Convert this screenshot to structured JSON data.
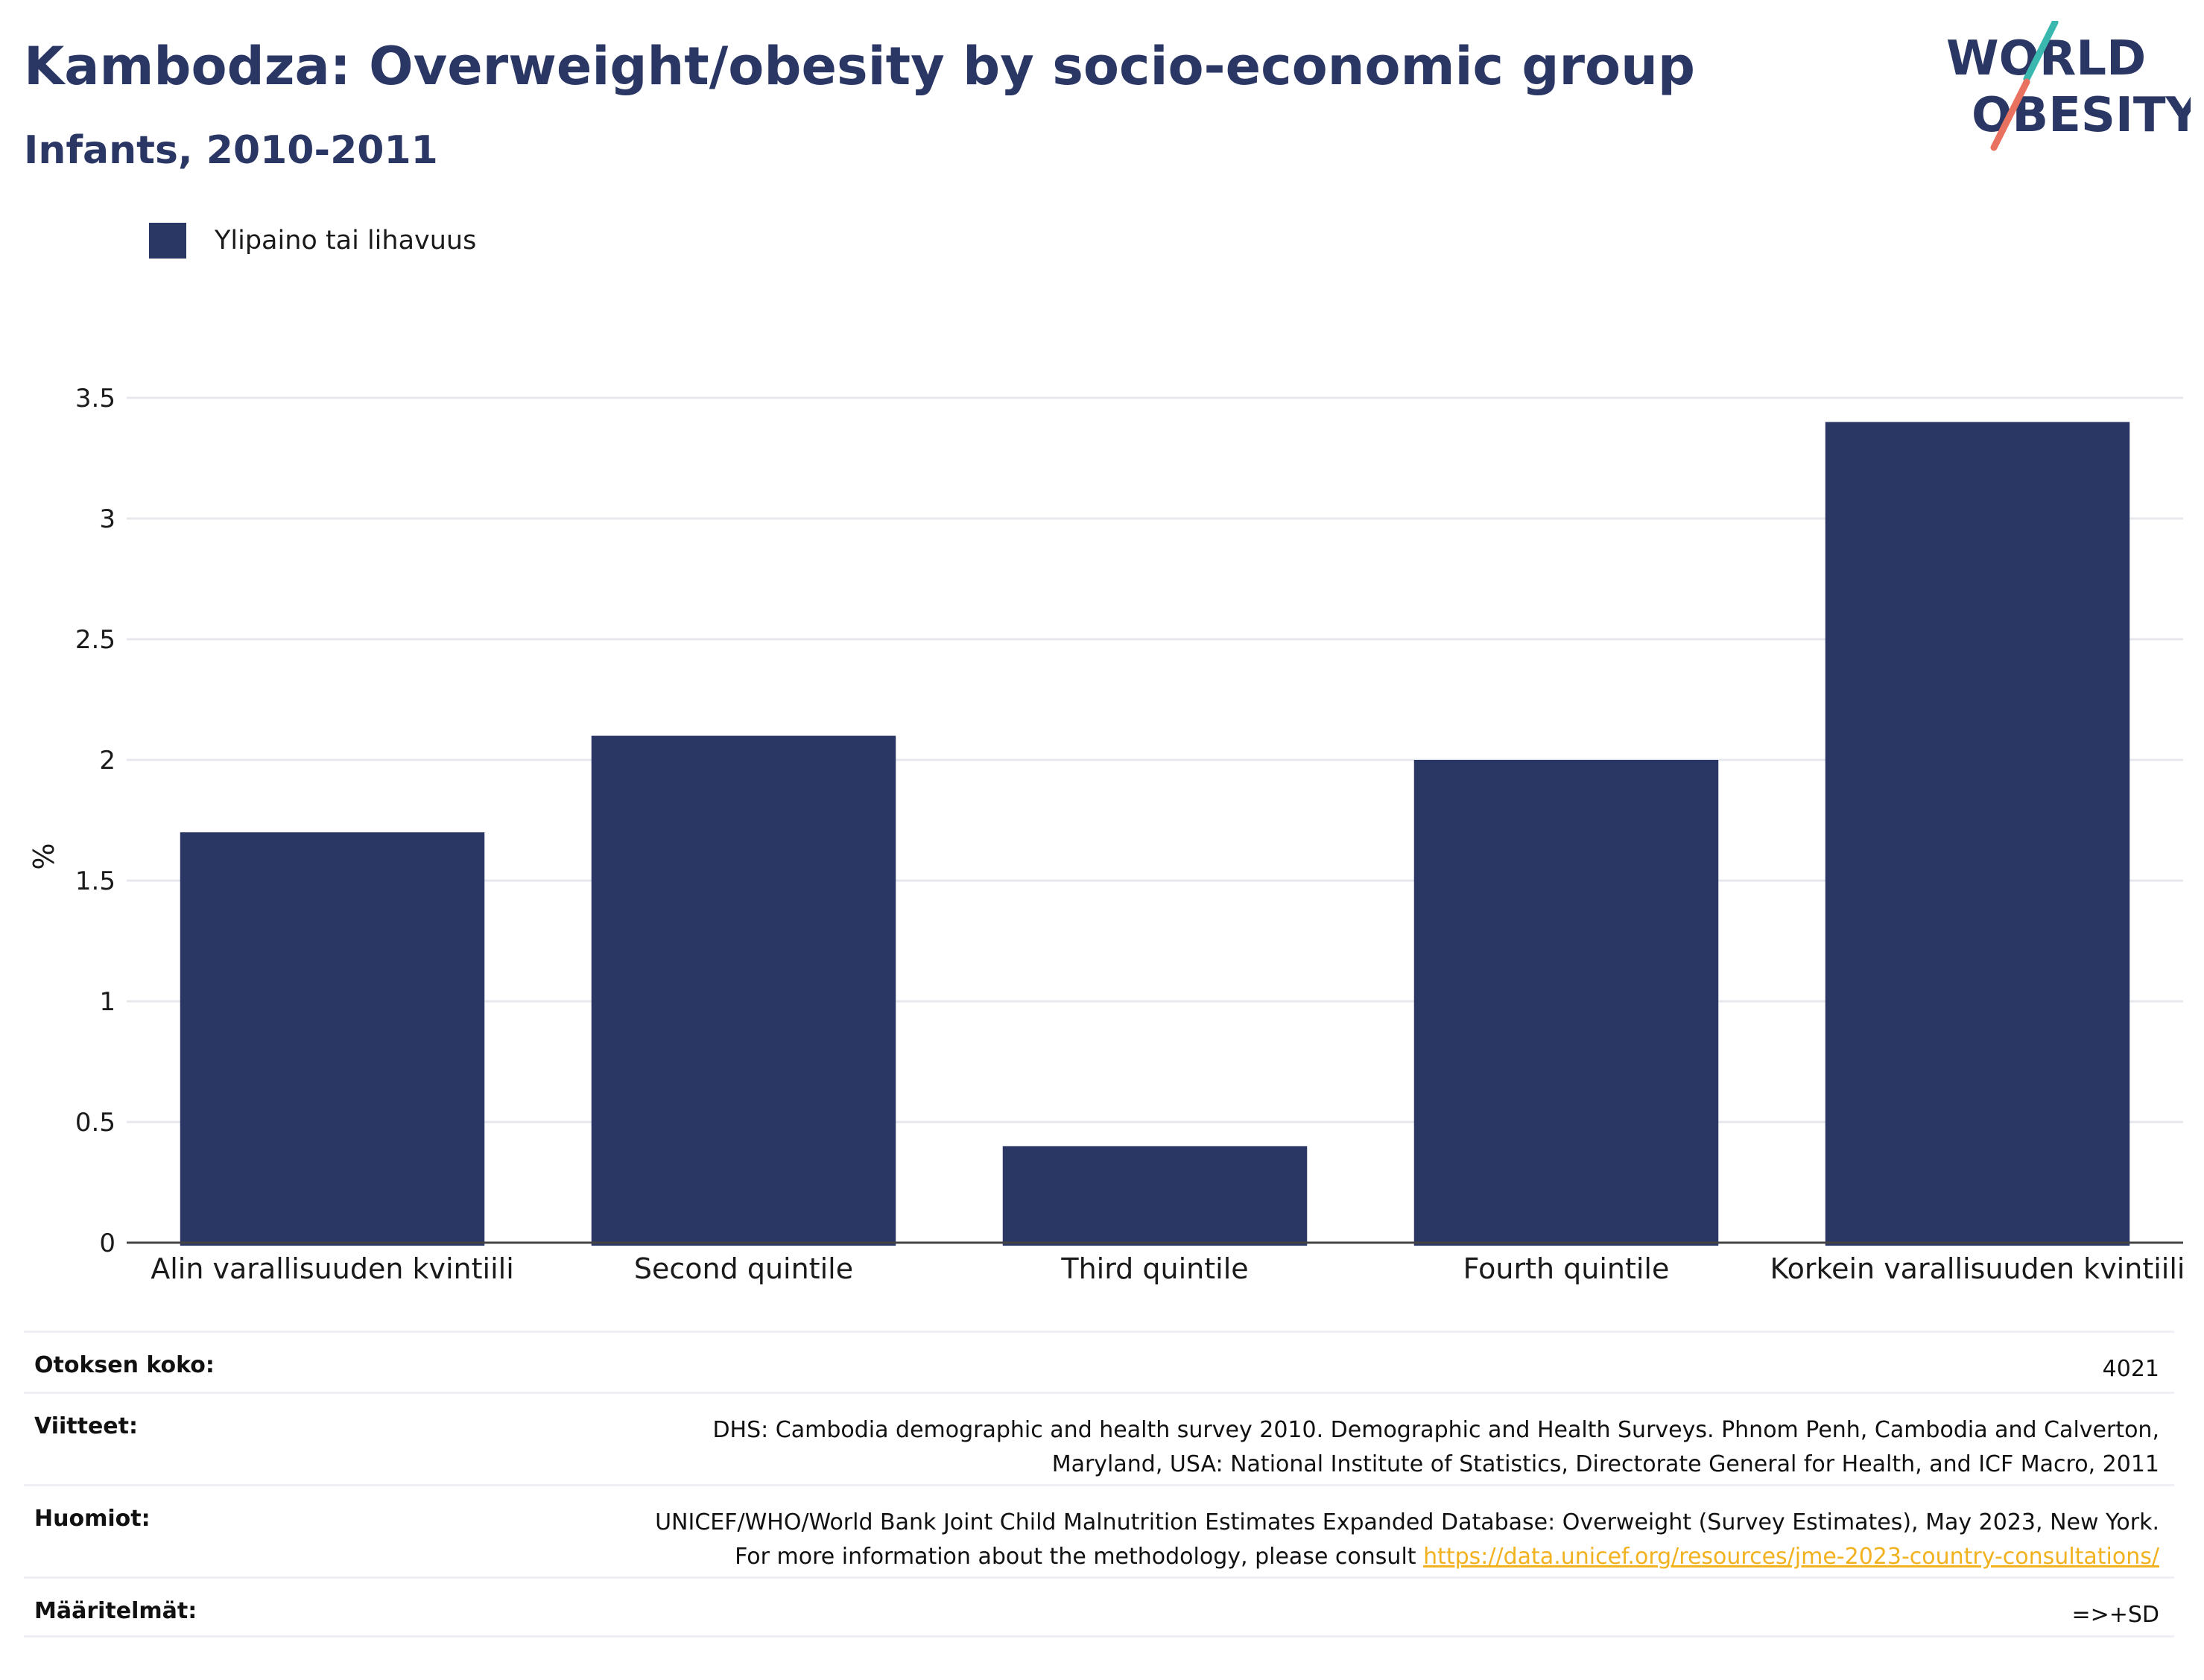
{
  "header": {
    "title": "Kambodza: Overweight/obesity by socio-economic group",
    "subtitle": "Infants, 2010-2011"
  },
  "logo": {
    "line1": "WORLD",
    "line2": "OBESITY"
  },
  "colors": {
    "bar": "#2a3663",
    "title": "#2a3663",
    "grid": "#e6e8ee",
    "link": "#f2b21f",
    "logo_slash_top": "#3ab8b0",
    "logo_slash_bottom": "#e8715f"
  },
  "legend": {
    "label": "Ylipaino tai lihavuus"
  },
  "chart_data": {
    "type": "bar",
    "categories": [
      "Alin varallisuuden kvintiili",
      "Second quintile",
      "Third quintile",
      "Fourth quintile",
      "Korkein varallisuuden kvintiili"
    ],
    "series": [
      {
        "name": "Ylipaino tai lihavuus",
        "values": [
          1.7,
          2.1,
          0.4,
          2.0,
          3.4
        ]
      }
    ],
    "ylabel": "%",
    "ylim": [
      0,
      3.5
    ],
    "yticks": [
      0,
      0.5,
      1,
      1.5,
      2,
      2.5,
      3,
      3.5
    ],
    "ytick_labels": [
      "0",
      "0.5",
      "1",
      "1.5",
      "2",
      "2.5",
      "3",
      "3.5"
    ],
    "grid": true,
    "legend_position": "top-left"
  },
  "meta": {
    "sample_label": "Otoksen koko:",
    "sample_value": "4021",
    "references_label": "Viitteet:",
    "references_value": "DHS: Cambodia demographic and health survey 2010. Demographic and Health Surveys. Phnom Penh, Cambodia and Calverton, Maryland, USA: National Institute of Statistics, Directorate General for Health, and ICF Macro, 2011",
    "notes_label": "Huomiot:",
    "notes_value": "UNICEF/WHO/World Bank Joint Child Malnutrition Estimates Expanded Database: Overweight (Survey Estimates), May 2023, New York. For more information about the methodology, please consult",
    "notes_link": "https://data.unicef.org/resources/jme-2023-country-consultations/",
    "definitions_label": "Määritelmät:",
    "definitions_value": "=>+SD"
  }
}
